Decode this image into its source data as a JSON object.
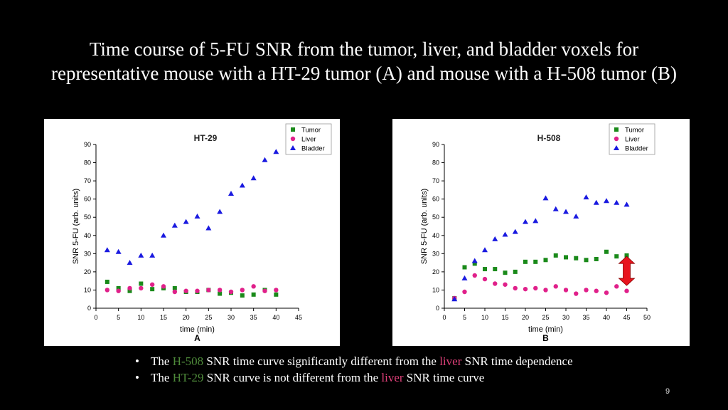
{
  "slide": {
    "title_line1": "Time course of 5-FU SNR from the tumor, liver, and bladder voxels for",
    "title_line2": "representative mouse with a HT-29 tumor (A) and mouse with a H-508 tumor (B)",
    "page_number": "9",
    "bullets": [
      {
        "pre": "The",
        "hl1": "H-508",
        "mid": "SNR time curve significantly different from the",
        "hl2": "liver",
        "post": "SNR time dependence"
      },
      {
        "pre": "The",
        "hl1": "HT-29",
        "mid": "SNR curve is not different from the",
        "hl2": "liver",
        "post": "SNR time curve"
      }
    ],
    "colors": {
      "highlight_tumor": "#4e8a3a",
      "highlight_liver": "#e0407a",
      "arrow": "#e8141e"
    }
  },
  "chart_data": [
    {
      "type": "scatter",
      "title": "HT-29",
      "panel_label": "A",
      "xlabel": "time (min)",
      "ylabel": "SNR 5-FU (arb. units)",
      "xlim": [
        0,
        45
      ],
      "ylim": [
        0,
        90
      ],
      "xticks": [
        0,
        5,
        10,
        15,
        20,
        25,
        30,
        35,
        40,
        45
      ],
      "yticks": [
        0,
        10,
        20,
        30,
        40,
        50,
        60,
        70,
        80,
        90
      ],
      "legend_position": "top-right",
      "series": [
        {
          "name": "Tumor",
          "marker": "square",
          "color": "#1a8a1a",
          "x": [
            2.5,
            5,
            7.5,
            10,
            12.5,
            15,
            17.5,
            20,
            22.5,
            25,
            27.5,
            30,
            32.5,
            35,
            37.5,
            40
          ],
          "y": [
            14.5,
            11,
            9.5,
            13.5,
            10.5,
            11,
            11,
            9,
            9,
            10,
            8,
            8.5,
            7,
            7.5,
            10,
            7.5
          ]
        },
        {
          "name": "Liver",
          "marker": "circle",
          "color": "#e0208a",
          "x": [
            2.5,
            5,
            7.5,
            10,
            12.5,
            15,
            17.5,
            20,
            22.5,
            25,
            27.5,
            30,
            32.5,
            35,
            37.5,
            40
          ],
          "y": [
            10,
            9.5,
            11,
            11,
            13,
            12,
            9,
            9.5,
            9.5,
            10,
            10,
            9,
            10,
            12,
            9.5,
            10
          ]
        },
        {
          "name": "Bladder",
          "marker": "triangle",
          "color": "#1a1ae0",
          "x": [
            2.5,
            5,
            7.5,
            10,
            12.5,
            15,
            17.5,
            20,
            22.5,
            25,
            27.5,
            30,
            32.5,
            35,
            37.5,
            40
          ],
          "y": [
            32,
            31,
            25,
            29,
            29,
            40,
            45.5,
            47.5,
            50.5,
            44,
            53,
            63,
            67.5,
            71.5,
            81.5,
            86
          ]
        }
      ]
    },
    {
      "type": "scatter",
      "title": "H-508",
      "panel_label": "B",
      "xlabel": "time (min)",
      "ylabel": "SNR 5-FU (arb. units)",
      "xlim": [
        0,
        50
      ],
      "ylim": [
        0,
        90
      ],
      "xticks": [
        0,
        5,
        10,
        15,
        20,
        25,
        30,
        35,
        40,
        45,
        50
      ],
      "yticks": [
        0,
        10,
        20,
        30,
        40,
        50,
        60,
        70,
        80,
        90
      ],
      "legend_position": "top-right",
      "series": [
        {
          "name": "Tumor",
          "marker": "square",
          "color": "#1a8a1a",
          "x": [
            2.5,
            5,
            7.5,
            10,
            12.5,
            15,
            17.5,
            20,
            22.5,
            25,
            27.5,
            30,
            32.5,
            35,
            37.5,
            40,
            42.5,
            45
          ],
          "y": [
            5.5,
            22.5,
            24.5,
            21.5,
            21.5,
            19.5,
            20,
            25.5,
            25.5,
            26.5,
            29,
            28,
            27.5,
            26.5,
            27,
            31,
            28.5,
            29
          ]
        },
        {
          "name": "Liver",
          "marker": "circle",
          "color": "#e0208a",
          "x": [
            2.5,
            5,
            7.5,
            10,
            12.5,
            15,
            17.5,
            20,
            22.5,
            25,
            27.5,
            30,
            32.5,
            35,
            37.5,
            40,
            42.5,
            45
          ],
          "y": [
            5.5,
            9,
            18,
            16,
            13.5,
            13,
            11,
            10.5,
            11,
            10,
            12,
            10,
            8,
            10,
            9.5,
            8.5,
            12,
            9.5
          ]
        },
        {
          "name": "Bladder",
          "marker": "triangle",
          "color": "#1a1ae0",
          "x": [
            2.5,
            5,
            7.5,
            10,
            12.5,
            15,
            17.5,
            20,
            22.5,
            25,
            27.5,
            30,
            32.5,
            35,
            37.5,
            40,
            42.5,
            45
          ],
          "y": [
            5,
            16.5,
            26,
            32,
            38,
            40.5,
            42,
            47.5,
            48,
            60.5,
            54.5,
            53,
            50.5,
            61,
            58,
            59,
            58,
            57
          ]
        }
      ]
    }
  ]
}
